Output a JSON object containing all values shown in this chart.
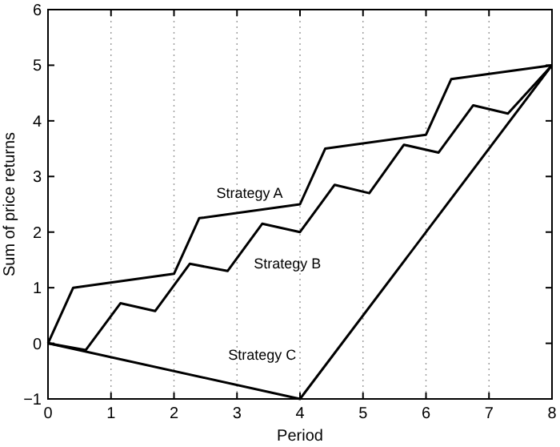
{
  "chart_data": {
    "type": "line",
    "xlabel": "Period",
    "ylabel": "Sum of price returns",
    "xlim": [
      0,
      8
    ],
    "ylim": [
      -1,
      6
    ],
    "xticks": [
      0,
      1,
      2,
      3,
      4,
      5,
      6,
      7,
      8
    ],
    "yticks": [
      -1,
      0,
      1,
      2,
      3,
      4,
      5,
      6
    ],
    "grid": "x",
    "marker": "none",
    "line_style": "solid",
    "series": [
      {
        "name": "Strategy A",
        "color": "#000000",
        "x": [
          0,
          0.4,
          2,
          2.4,
          4,
          4.4,
          6,
          6.4,
          8
        ],
        "values": [
          0,
          1,
          1.25,
          2.25,
          2.5,
          3.5,
          3.75,
          4.75,
          5
        ]
      },
      {
        "name": "Strategy B",
        "color": "#000000",
        "x": [
          0,
          0.6,
          1.15,
          1.7,
          2.25,
          2.85,
          3.4,
          4,
          4.55,
          5.1,
          5.65,
          6.2,
          6.75,
          7.3,
          8
        ],
        "values": [
          0,
          -0.12,
          0.72,
          0.58,
          1.43,
          1.3,
          2.15,
          2,
          2.85,
          2.7,
          3.57,
          3.43,
          4.28,
          4.13,
          5
        ]
      },
      {
        "name": "Strategy C",
        "color": "#000000",
        "x": [
          0,
          4,
          8
        ],
        "values": [
          0,
          -1,
          5
        ]
      }
    ],
    "legend": false
  }
}
